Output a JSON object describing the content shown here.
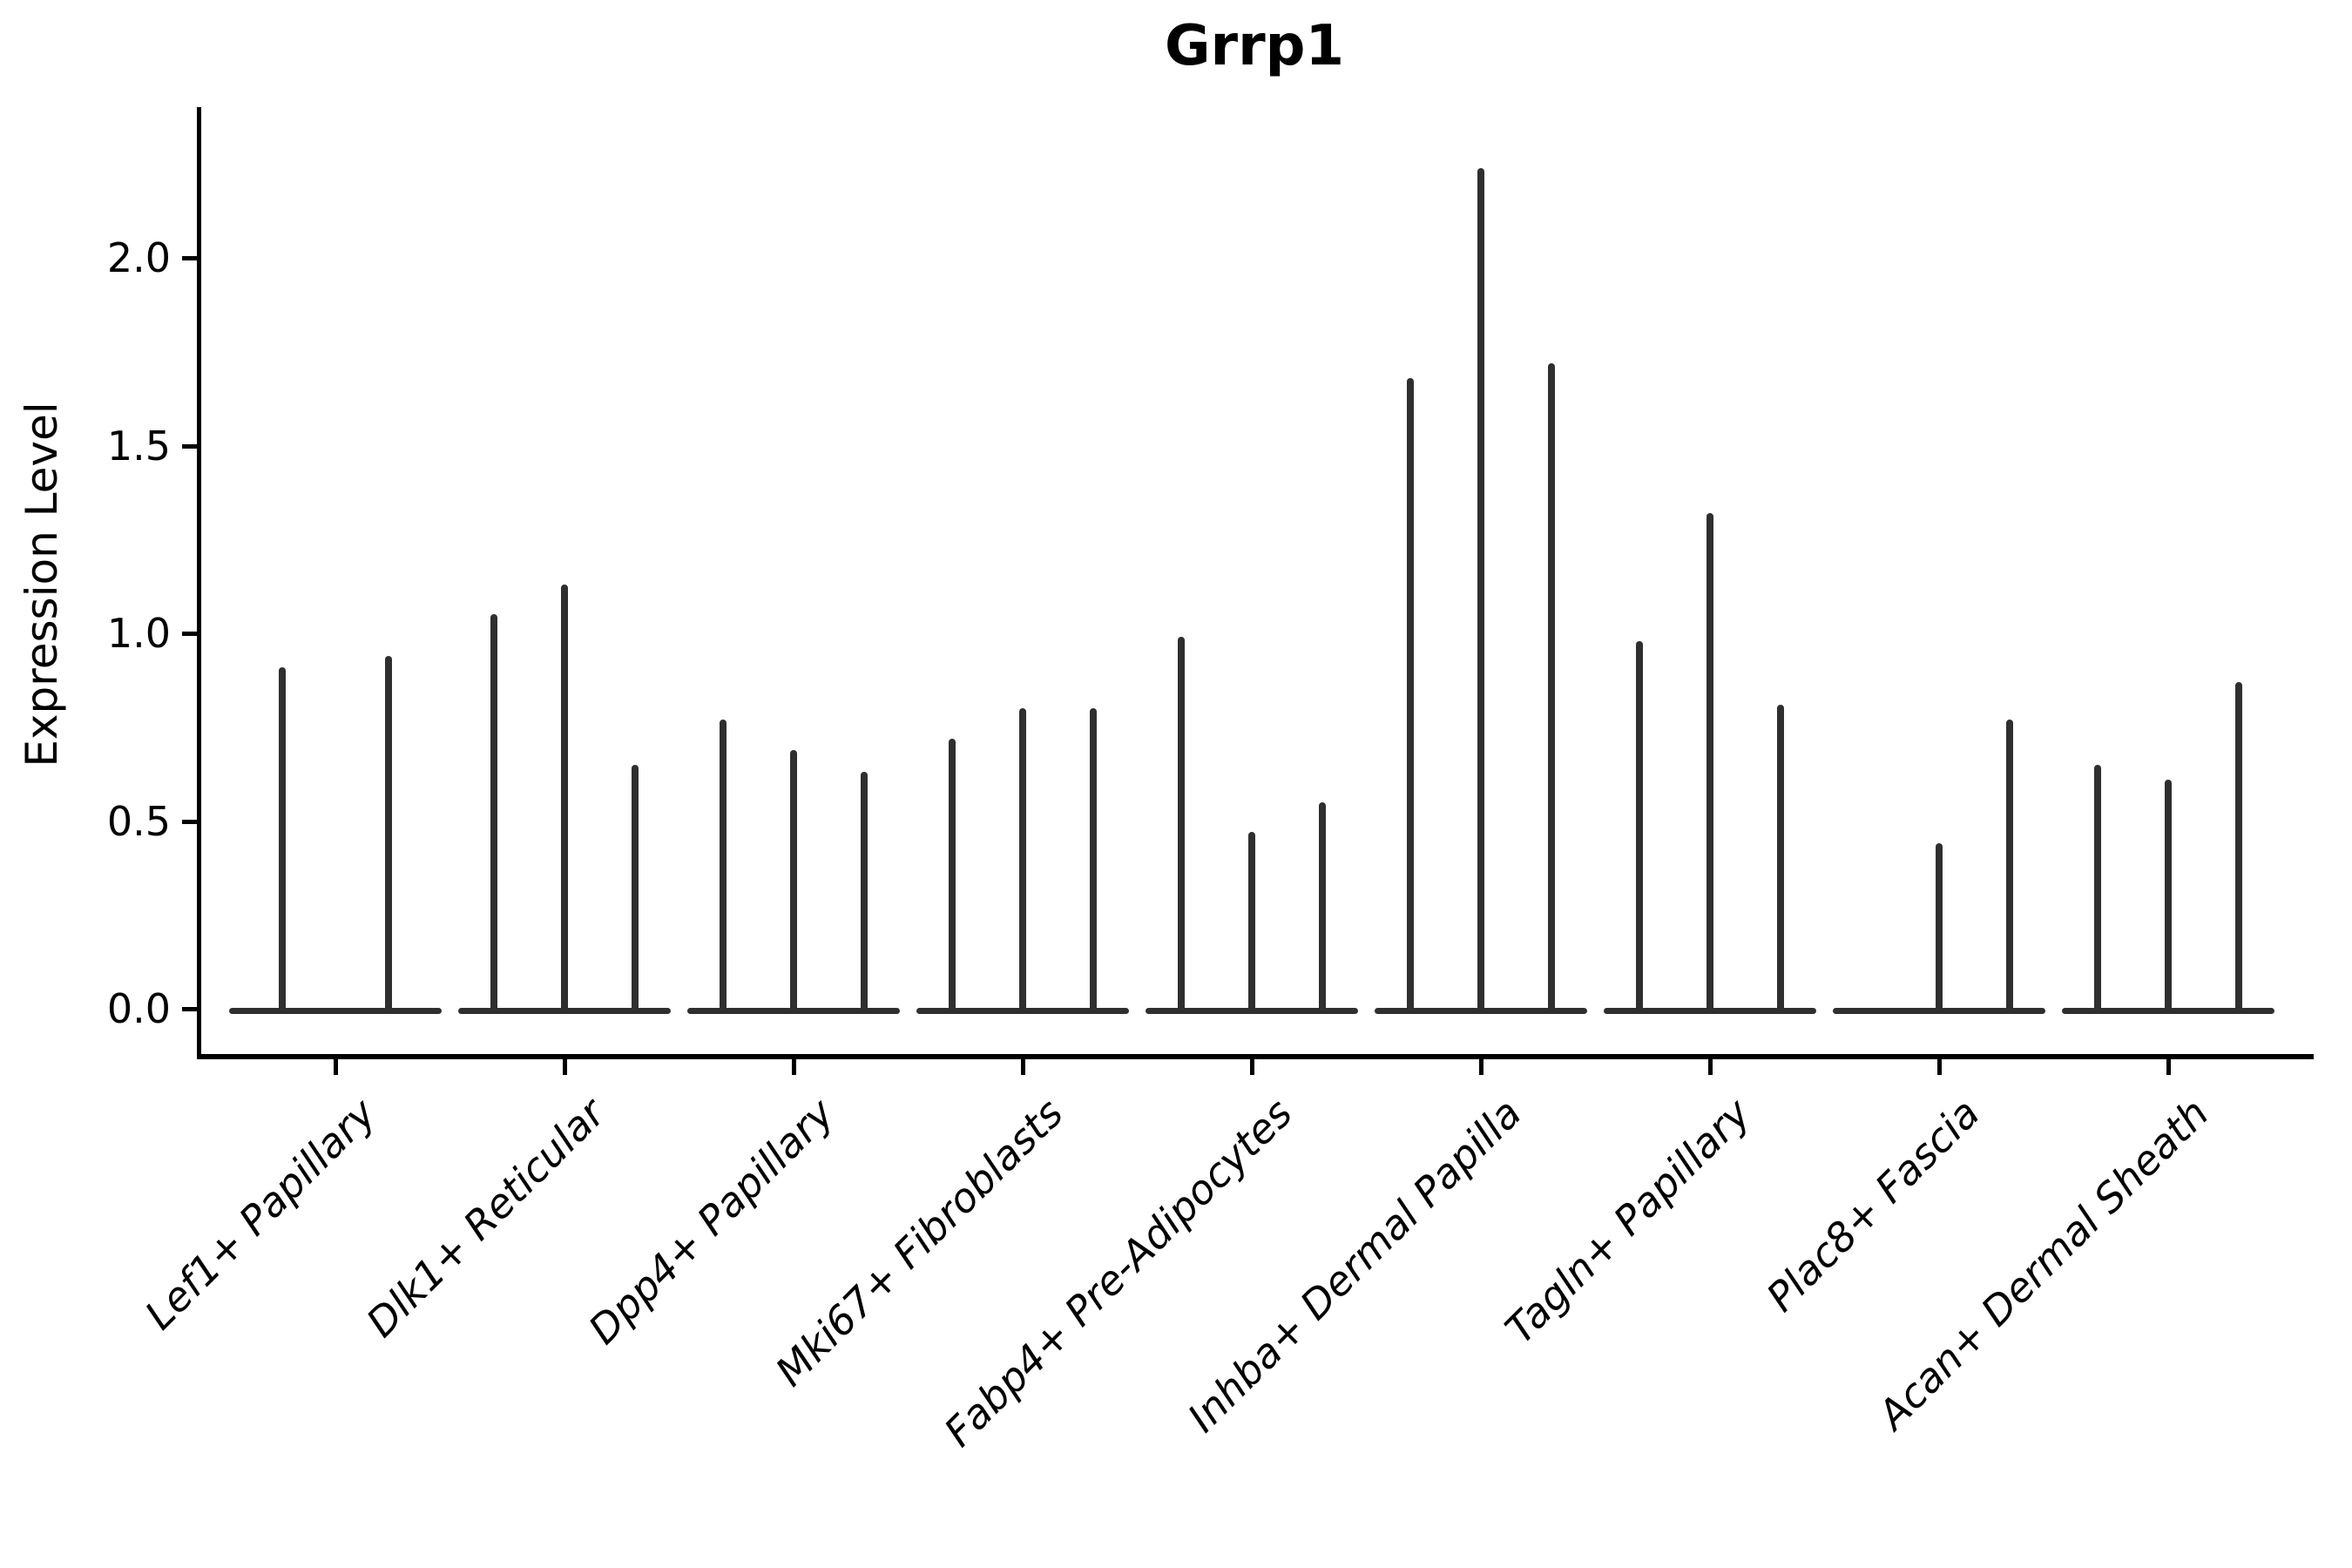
{
  "title": "Grrp1",
  "ylabel": "Expression Level",
  "colors": {
    "violin": "#2f2f2f",
    "axis": "#000000",
    "text": "#000000",
    "background": "#ffffff"
  },
  "chart_data": {
    "type": "violin",
    "title": "Grrp1",
    "xlabel": "",
    "ylabel": "Expression Level",
    "ylim": [
      -0.12,
      2.4
    ],
    "yticks": [
      0.0,
      0.5,
      1.0,
      1.5,
      2.0
    ],
    "ytick_labels": [
      "0.0",
      "0.5",
      "1.0",
      "1.5",
      "2.0"
    ],
    "grid": false,
    "legend": null,
    "style_note": "needle-thin violins: flat dark baseline at 0 per group with thin vertical spikes up to each violin's max expression",
    "categories": [
      "Lef1+ Papillary",
      "Dlk1+ Reticular",
      "Dpp4+ Papillary",
      "Mki67+ Fibroblasts",
      "Fabp4+ Pre-Adipocytes",
      "Inhba+ Dermal Papilla",
      "Tagln+ Papillary",
      "Plac8+ Fascia",
      "Acan+ Dermal Sheath"
    ],
    "groups": [
      {
        "category": "Lef1+ Papillary",
        "violin_max_values": [
          0.91,
          0.94
        ]
      },
      {
        "category": "Dlk1+ Reticular",
        "violin_max_values": [
          1.05,
          1.13,
          0.65
        ]
      },
      {
        "category": "Dpp4+ Papillary",
        "violin_max_values": [
          0.77,
          0.69,
          0.63
        ]
      },
      {
        "category": "Mki67+ Fibroblasts",
        "violin_max_values": [
          0.72,
          0.8,
          0.8
        ]
      },
      {
        "category": "Fabp4+ Pre-Adipocytes",
        "violin_max_values": [
          0.99,
          0.47,
          0.55
        ]
      },
      {
        "category": "Inhba+ Dermal Papilla",
        "violin_max_values": [
          1.68,
          2.24,
          1.72
        ]
      },
      {
        "category": "Tagln+ Papillary",
        "violin_max_values": [
          0.98,
          1.32,
          0.81
        ]
      },
      {
        "category": "Plac8+ Fascia",
        "violin_max_values": [
          0.0,
          0.44,
          0.77
        ]
      },
      {
        "category": "Acan+ Dermal Sheath",
        "violin_max_values": [
          0.65,
          0.61,
          0.87
        ]
      }
    ]
  }
}
